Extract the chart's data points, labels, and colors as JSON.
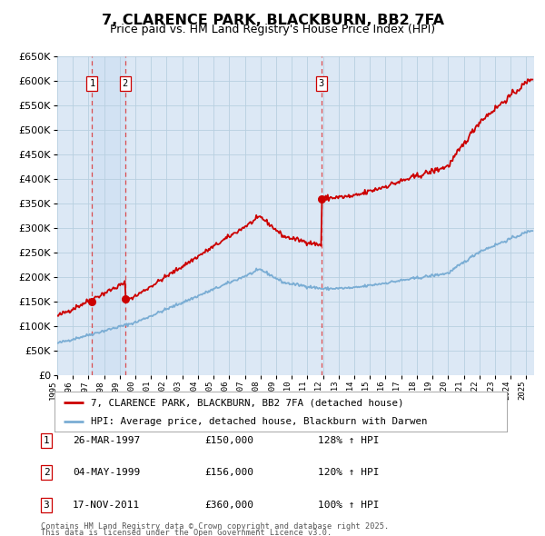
{
  "title": "7, CLARENCE PARK, BLACKBURN, BB2 7FA",
  "subtitle": "Price paid vs. HM Land Registry's House Price Index (HPI)",
  "legend_line1": "7, CLARENCE PARK, BLACKBURN, BB2 7FA (detached house)",
  "legend_line2": "HPI: Average price, detached house, Blackburn with Darwen",
  "footnote1": "Contains HM Land Registry data © Crown copyright and database right 2025.",
  "footnote2": "This data is licensed under the Open Government Licence v3.0.",
  "transactions": [
    {
      "num": 1,
      "date": "26-MAR-1997",
      "price": 150000,
      "price_str": "£150,000",
      "hpi_str": "128% ↑ HPI",
      "year": 1997.23
    },
    {
      "num": 2,
      "date": "04-MAY-1999",
      "price": 156000,
      "price_str": "£156,000",
      "hpi_str": "120% ↑ HPI",
      "year": 1999.34
    },
    {
      "num": 3,
      "date": "17-NOV-2011",
      "price": 360000,
      "price_str": "£360,000",
      "hpi_str": "100% ↑ HPI",
      "year": 2011.88
    }
  ],
  "red_color": "#cc0000",
  "blue_color": "#7aadd4",
  "bg_chart": "#dce8f5",
  "bg_white": "#ffffff",
  "grid_color": "#b8cfe0",
  "vline_color": "#dd3333",
  "ylim_max": 650000,
  "xmin": 1995.0,
  "xmax": 2025.5
}
